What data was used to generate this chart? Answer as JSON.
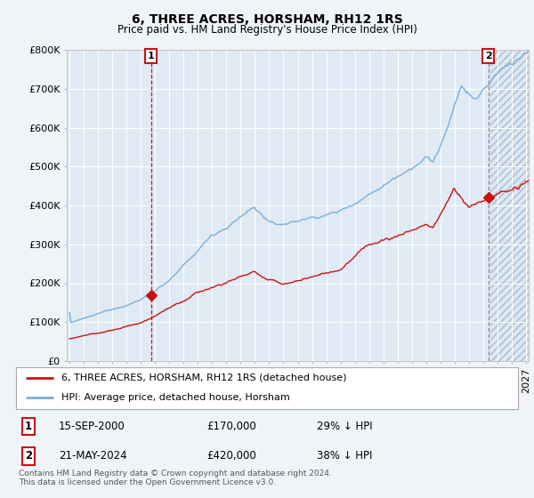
{
  "title": "6, THREE ACRES, HORSHAM, RH12 1RS",
  "subtitle": "Price paid vs. HM Land Registry's House Price Index (HPI)",
  "ylim": [
    0,
    800000
  ],
  "xlim_start": 1994.8,
  "xlim_end": 2027.2,
  "hpi_color": "#7aaed6",
  "price_color": "#cc1111",
  "sale1_x": 2000.71,
  "sale1_y": 170000,
  "sale2_x": 2024.38,
  "sale2_y": 420000,
  "vline1_x": 2000.71,
  "vline2_x": 2024.38,
  "vline1_color": "#cc1111",
  "vline2_color": "#888888",
  "label1_num": "1",
  "label2_num": "2",
  "legend_line1": "6, THREE ACRES, HORSHAM, RH12 1RS (detached house)",
  "legend_line2": "HPI: Average price, detached house, Horsham",
  "table_row1": [
    "1",
    "15-SEP-2000",
    "£170,000",
    "29% ↓ HPI"
  ],
  "table_row2": [
    "2",
    "21-MAY-2024",
    "£420,000",
    "38% ↓ HPI"
  ],
  "footer": "Contains HM Land Registry data © Crown copyright and database right 2024.\nThis data is licensed under the Open Government Licence v3.0.",
  "bg_color": "#f0f4f8",
  "plot_bg_color": "#e0eaf4",
  "hatch_area_start": 2024.5,
  "grid_color": "#ffffff"
}
